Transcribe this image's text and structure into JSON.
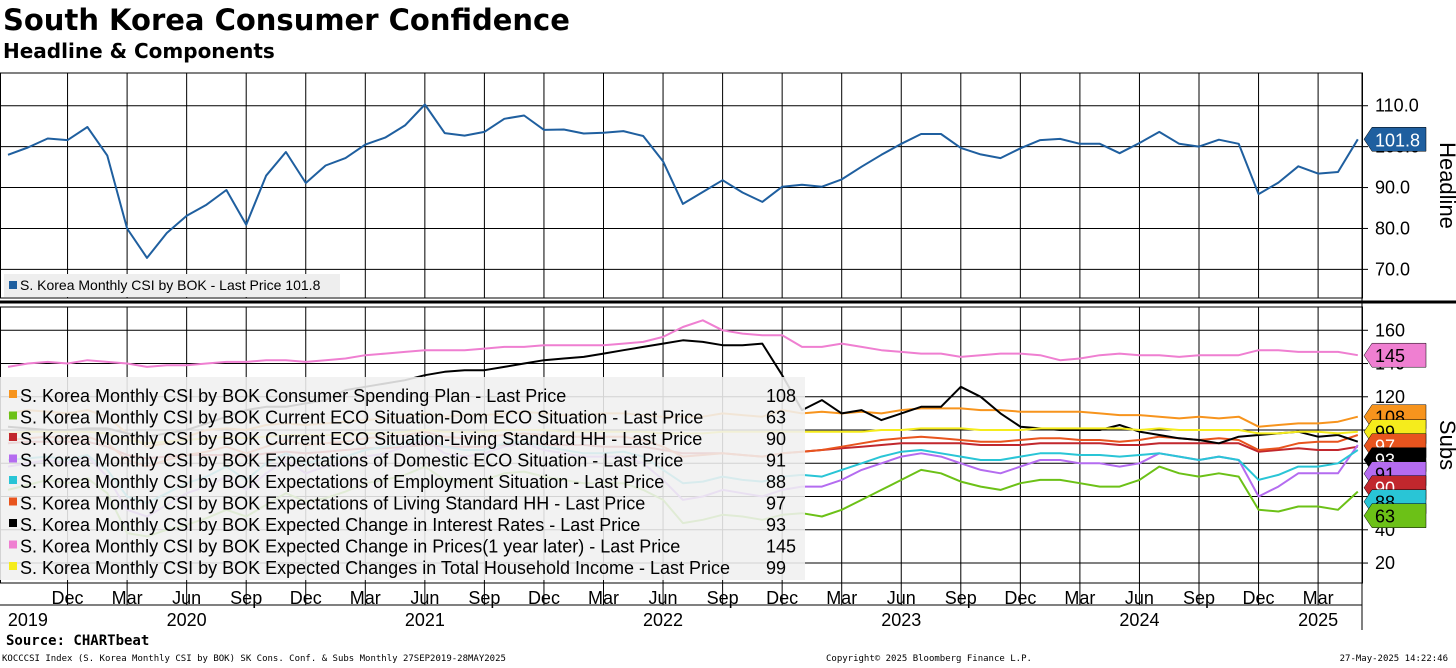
{
  "header": {
    "title": "South Korea Consumer Confidence",
    "subtitle": "Headline & Components"
  },
  "footer": {
    "source": "Source: CHARTbeat",
    "ticker": "KOCCCSI Index (S. Korea Monthly CSI by BOK) SK Cons. Conf. & Subs  Monthly 27SEP2019-28MAY2025",
    "copyright": "Copyright© 2025 Bloomberg Finance L.P.",
    "timestamp": "27-May-2025 14:22:46"
  },
  "chart_data": [
    {
      "type": "line",
      "panel": "headline",
      "ylabel": "Headline",
      "ylim": [
        63,
        118
      ],
      "yticks": [
        70,
        80,
        90,
        100,
        110
      ],
      "ytick_labels": [
        "70.0",
        "80.0",
        "90.0",
        "100.0",
        "110.0"
      ],
      "grid": true,
      "legend_position": "bottom-left",
      "x_start": "2019-09",
      "series": [
        {
          "name": "S. Korea Monthly CSI by BOK - Last Price 101.8",
          "color": "#1f5f9f",
          "last_value": "101.8",
          "values": [
            98.0,
            99.8,
            102.0,
            101.6,
            104.8,
            97.8,
            80.0,
            72.8,
            78.9,
            83.1,
            85.8,
            89.4,
            80.9,
            92.9,
            98.7,
            91.1,
            95.4,
            97.2,
            100.5,
            102.2,
            105.2,
            110.3,
            103.3,
            102.7,
            103.6,
            106.8,
            107.6,
            104.1,
            104.2,
            103.2,
            103.4,
            103.8,
            102.6,
            96.4,
            86.0,
            88.9,
            91.8,
            88.8,
            86.5,
            90.2,
            90.7,
            90.2,
            92.0,
            95.1,
            98.0,
            100.7,
            103.1,
            103.1,
            99.7,
            98.1,
            97.2,
            99.6,
            101.6,
            101.9,
            100.7,
            100.7,
            98.4,
            100.9,
            103.6,
            100.7,
            100.0,
            101.7,
            100.7,
            88.4,
            91.2,
            95.2,
            93.4,
            93.8,
            101.8
          ]
        }
      ]
    },
    {
      "type": "line",
      "panel": "subs",
      "ylabel": "Subs",
      "ylim": [
        8,
        174
      ],
      "yticks": [
        20,
        40,
        60,
        80,
        100,
        120,
        140,
        160
      ],
      "ytick_labels": [
        "20",
        "40",
        "60",
        "80",
        "100",
        "120",
        "140",
        "160"
      ],
      "grid": true,
      "legend_position": "left",
      "series": [
        {
          "name": "S. Korea Monthly CSI by BOK Consumer Spending Plan - Last Price",
          "color": "#f7941d",
          "last_value": "108",
          "values": [
            110,
            112,
            111,
            110,
            112,
            108,
            98,
            90,
            92,
            96,
            100,
            101,
            100,
            103,
            104,
            103,
            104,
            105,
            106,
            107,
            108,
            110,
            108,
            109,
            109,
            110,
            111,
            110,
            109,
            109,
            110,
            110,
            109,
            108,
            108,
            108,
            110,
            109,
            108,
            112,
            110,
            111,
            110,
            111,
            110,
            112,
            113,
            113,
            113,
            112,
            112,
            111,
            111,
            111,
            111,
            110,
            109,
            109,
            108,
            107,
            108,
            107,
            108,
            102,
            103,
            104,
            104,
            105,
            108
          ]
        },
        {
          "name": "S. Korea Monthly CSI by BOK Current ECO Situation-Dom ECO Situation - Last Price",
          "color": "#6cc117",
          "last_value": "63",
          "values": [
            64,
            67,
            70,
            68,
            71,
            62,
            38,
            36,
            40,
            43,
            47,
            52,
            48,
            55,
            62,
            57,
            59,
            63,
            68,
            70,
            73,
            78,
            70,
            68,
            70,
            74,
            75,
            72,
            70,
            68,
            68,
            68,
            64,
            58,
            44,
            46,
            49,
            48,
            46,
            49,
            50,
            48,
            52,
            58,
            64,
            70,
            76,
            74,
            69,
            66,
            64,
            68,
            70,
            70,
            68,
            66,
            66,
            70,
            78,
            74,
            72,
            74,
            72,
            52,
            51,
            54,
            54,
            52,
            63
          ]
        },
        {
          "name": "S. Korea Monthly CSI by BOK Current ECO Situation-Living Standard HH - Last Price",
          "color": "#c1272d",
          "last_value": "90",
          "values": [
            92,
            93,
            93,
            93,
            93,
            90,
            85,
            83,
            84,
            85,
            85,
            85,
            84,
            86,
            87,
            86,
            87,
            88,
            89,
            89,
            90,
            91,
            90,
            90,
            90,
            91,
            92,
            91,
            91,
            91,
            90,
            90,
            90,
            88,
            86,
            86,
            86,
            85,
            84,
            86,
            87,
            88,
            89,
            90,
            91,
            92,
            92,
            92,
            92,
            91,
            91,
            91,
            92,
            92,
            92,
            92,
            91,
            91,
            92,
            92,
            92,
            92,
            92,
            87,
            88,
            89,
            88,
            88,
            90
          ]
        },
        {
          "name": "S. Korea Monthly CSI by BOK Expectations of Domestic ECO Situation - Last Price",
          "color": "#b46cf0",
          "last_value": "91",
          "values": [
            78,
            80,
            82,
            80,
            84,
            72,
            52,
            48,
            55,
            62,
            66,
            72,
            64,
            74,
            82,
            74,
            78,
            80,
            84,
            86,
            90,
            94,
            86,
            84,
            86,
            90,
            92,
            88,
            86,
            84,
            84,
            84,
            80,
            70,
            58,
            60,
            64,
            62,
            60,
            64,
            66,
            66,
            70,
            76,
            80,
            84,
            86,
            84,
            80,
            76,
            74,
            78,
            82,
            82,
            80,
            80,
            78,
            80,
            86,
            84,
            82,
            84,
            82,
            60,
            66,
            74,
            74,
            74,
            91
          ]
        },
        {
          "name": "S. Korea Monthly CSI by BOK Expectations of Employment Situation - Last Price",
          "color": "#29c5d6",
          "last_value": "88",
          "values": [
            82,
            83,
            84,
            82,
            85,
            76,
            60,
            56,
            62,
            68,
            72,
            78,
            70,
            80,
            86,
            80,
            83,
            84,
            88,
            90,
            92,
            96,
            90,
            88,
            88,
            92,
            93,
            90,
            88,
            86,
            86,
            87,
            84,
            76,
            68,
            69,
            72,
            70,
            69,
            72,
            73,
            72,
            76,
            80,
            84,
            87,
            88,
            86,
            84,
            82,
            82,
            84,
            86,
            86,
            85,
            85,
            84,
            85,
            86,
            84,
            82,
            84,
            82,
            70,
            73,
            78,
            78,
            80,
            88
          ]
        },
        {
          "name": "S. Korea Monthly CSI by BOK Expectations of Living Standard HH - Last Price",
          "color": "#e8541e",
          "last_value": "97",
          "values": [
            94,
            95,
            96,
            95,
            96,
            92,
            82,
            78,
            82,
            85,
            87,
            90,
            86,
            90,
            94,
            91,
            92,
            93,
            95,
            96,
            97,
            99,
            96,
            95,
            96,
            97,
            98,
            97,
            96,
            96,
            96,
            96,
            94,
            90,
            84,
            85,
            86,
            85,
            84,
            86,
            87,
            88,
            90,
            92,
            94,
            95,
            96,
            95,
            94,
            93,
            93,
            94,
            95,
            95,
            94,
            94,
            93,
            94,
            96,
            95,
            94,
            95,
            94,
            88,
            89,
            92,
            93,
            93,
            97
          ]
        },
        {
          "name": "S. Korea Monthly CSI by BOK Expected Change in Interest Rates - Last Price",
          "color": "#000000",
          "last_value": "93",
          "values": [
            102,
            101,
            100,
            100,
            101,
            101,
            98,
            96,
            98,
            100,
            104,
            108,
            112,
            114,
            114,
            116,
            118,
            124,
            126,
            128,
            130,
            133,
            135,
            136,
            136,
            138,
            140,
            142,
            143,
            144,
            146,
            148,
            150,
            152,
            154,
            153,
            151,
            151,
            152,
            133,
            112,
            118,
            110,
            112,
            106,
            110,
            114,
            114,
            126,
            120,
            110,
            102,
            101,
            100,
            100,
            100,
            103,
            99,
            97,
            95,
            94,
            92,
            96,
            97,
            98,
            99,
            96,
            97,
            93
          ]
        },
        {
          "name": "S. Korea Monthly CSI by BOK Expected Change in Prices(1 year later) - Last Price",
          "color": "#ef7fd1",
          "last_value": "145",
          "values": [
            138,
            140,
            141,
            140,
            142,
            141,
            140,
            138,
            139,
            139,
            140,
            141,
            141,
            142,
            142,
            141,
            142,
            143,
            145,
            146,
            147,
            148,
            148,
            148,
            149,
            150,
            150,
            151,
            151,
            151,
            151,
            152,
            153,
            156,
            162,
            166,
            160,
            158,
            157,
            157,
            150,
            150,
            152,
            150,
            148,
            147,
            146,
            146,
            144,
            145,
            146,
            146,
            145,
            142,
            143,
            145,
            146,
            145,
            145,
            144,
            145,
            145,
            145,
            148,
            148,
            147,
            147,
            147,
            145
          ]
        },
        {
          "name": "S. Korea Monthly CSI by BOK Expected Changes in Total Household Income - Last Price",
          "color": "#f5ec1c",
          "last_value": "99",
          "values": [
            98,
            99,
            99,
            99,
            99,
            98,
            94,
            92,
            93,
            94,
            95,
            96,
            95,
            96,
            97,
            97,
            97,
            97,
            98,
            98,
            99,
            100,
            99,
            99,
            99,
            100,
            100,
            100,
            99,
            99,
            99,
            99,
            99,
            98,
            98,
            98,
            99,
            99,
            99,
            99,
            99,
            99,
            99,
            99,
            100,
            100,
            101,
            101,
            101,
            100,
            100,
            100,
            101,
            101,
            101,
            101,
            101,
            100,
            101,
            100,
            100,
            100,
            100,
            98,
            98,
            99,
            99,
            98,
            99
          ]
        }
      ]
    },
    {
      "type": "axis",
      "x_tick_labels": [
        "Dec",
        "Mar",
        "Jun",
        "Sep",
        "Dec",
        "Mar",
        "Jun",
        "Sep",
        "Dec",
        "Mar",
        "Jun",
        "Sep",
        "Dec",
        "Mar",
        "Jun",
        "Sep",
        "Dec",
        "Mar",
        "Jun",
        "Sep",
        "Dec",
        "Mar"
      ],
      "x_tick_months": [
        "2019-12",
        "2020-03",
        "2020-06",
        "2020-09",
        "2020-12",
        "2021-03",
        "2021-06",
        "2021-09",
        "2021-12",
        "2022-03",
        "2022-06",
        "2022-09",
        "2022-12",
        "2023-03",
        "2023-06",
        "2023-09",
        "2023-12",
        "2024-03",
        "2024-06",
        "2024-09",
        "2024-12",
        "2025-03"
      ],
      "year_labels": [
        "2019",
        "2020",
        "2021",
        "2022",
        "2023",
        "2024",
        "2025"
      ],
      "year_label_months": [
        "2019-10",
        "2020-06",
        "2021-06",
        "2022-06",
        "2023-06",
        "2024-06",
        "2025-03"
      ]
    }
  ]
}
